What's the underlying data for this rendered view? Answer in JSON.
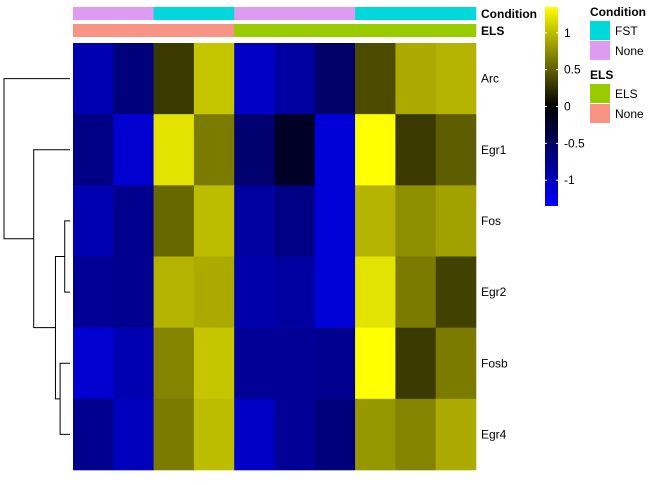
{
  "chart_data": {
    "type": "heatmap",
    "rows": [
      "Arc",
      "Egr1",
      "Fos",
      "Egr2",
      "Fosb",
      "Egr4"
    ],
    "column_count": 10,
    "values": [
      [
        -0.95,
        -0.65,
        0.3,
        1.05,
        -1.05,
        -0.85,
        -0.55,
        0.4,
        0.9,
        0.95
      ],
      [
        -0.7,
        -1.1,
        1.2,
        0.65,
        -0.6,
        -0.2,
        -1.15,
        1.35,
        0.3,
        0.5
      ],
      [
        -0.95,
        -0.75,
        0.55,
        1.0,
        -0.85,
        -0.7,
        -1.15,
        0.95,
        0.75,
        0.85
      ],
      [
        -0.8,
        -0.75,
        0.95,
        0.9,
        -0.9,
        -0.85,
        -1.15,
        1.2,
        0.65,
        0.35
      ],
      [
        -1.1,
        -0.95,
        0.7,
        1.05,
        -0.8,
        -0.8,
        -0.75,
        1.35,
        0.3,
        0.65
      ],
      [
        -0.75,
        -1.0,
        0.65,
        1.0,
        -1.05,
        -0.8,
        -0.65,
        0.8,
        0.7,
        0.9
      ]
    ],
    "color_scale": {
      "breaks": [
        -1.35,
        0,
        1.35
      ],
      "colors": [
        "#0000FF",
        "#000000",
        "#FFFF00"
      ],
      "ticks": [
        {
          "value": 1,
          "label": "1"
        },
        {
          "value": 0.5,
          "label": "0.5"
        },
        {
          "value": 0,
          "label": "0"
        },
        {
          "value": -0.5,
          "label": "-0.5"
        },
        {
          "value": -1,
          "label": "-1"
        }
      ]
    },
    "column_annotations": [
      {
        "name": "Condition",
        "values": [
          "None",
          "None",
          "FST",
          "FST",
          "None",
          "None",
          "None",
          "FST",
          "FST",
          "FST"
        ]
      },
      {
        "name": "ELS",
        "values": [
          "None",
          "None",
          "None",
          "None",
          "ELS",
          "ELS",
          "ELS",
          "ELS",
          "ELS",
          "ELS"
        ]
      }
    ],
    "annotation_legends": [
      {
        "title": "Condition",
        "items": [
          {
            "label": "FST",
            "color": "#00D8DC"
          },
          {
            "label": "None",
            "color": "#DD9CF2"
          }
        ]
      },
      {
        "title": "ELS",
        "items": [
          {
            "label": "ELS",
            "color": "#99CC00"
          },
          {
            "label": "None",
            "color": "#F89484"
          }
        ]
      }
    ],
    "row_dendrogram": {
      "order": [
        "Arc",
        "Egr1",
        "Fos",
        "Egr2",
        "Fosb",
        "Egr4"
      ],
      "merges": [
        {
          "a": "Fos",
          "b": "Egr2",
          "height": 0.08
        },
        {
          "a": "Fosb",
          "b": "Egr4",
          "height": 0.15
        },
        {
          "a": "m0",
          "b": "m1",
          "height": 0.22
        },
        {
          "a": "Egr1",
          "b": "m2",
          "height": 0.55
        },
        {
          "a": "Arc",
          "b": "m3",
          "height": 1.0
        }
      ]
    },
    "legend_placement": "right",
    "grid": false
  }
}
